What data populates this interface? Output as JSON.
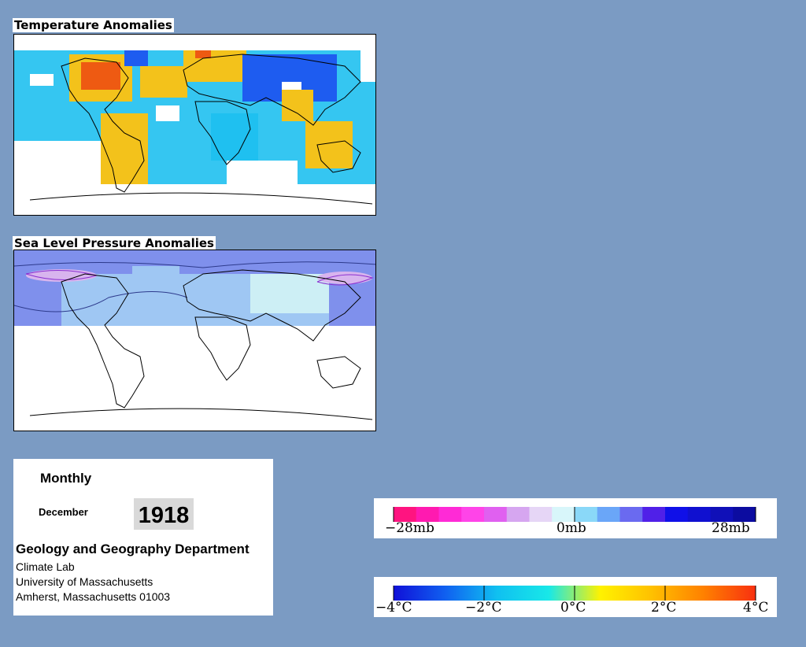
{
  "temperature_map": {
    "title": "Temperature Anomalies",
    "colors": {
      "cold": "#1e5cf0",
      "cool": "#1fc0f0",
      "neutral": "#ffffff",
      "warm": "#f3c21b",
      "hot": "#ee5a12"
    }
  },
  "pressure_map": {
    "title": "Sea Level Pressure Anomalies",
    "colors": {
      "low": "#7f90ec",
      "mid": "#9fc7f3",
      "zero": "#cdeff5",
      "high": "#d8b4ee",
      "contour": "#8b2fd0"
    }
  },
  "info": {
    "period": "Monthly",
    "month": "December",
    "year": "1918",
    "department": "Geology and Geography Department",
    "lab": "Climate Lab",
    "university": "University of Massachusetts",
    "address": "Amherst, Massachusetts 01003"
  },
  "pressure_legend": {
    "labels": [
      "−28mb",
      "0mb",
      "28mb"
    ],
    "colors": [
      "#ff1480",
      "#ff1ab0",
      "#ff2ad6",
      "#ff44e8",
      "#e060f0",
      "#d6a6f0",
      "#e6d6f6",
      "#d8f6fa",
      "#8ad8f8",
      "#6aa6f8",
      "#6a6af0",
      "#5020e8",
      "#1010e8",
      "#1010d0",
      "#1010b8",
      "#0c0ca0"
    ]
  },
  "temperature_legend": {
    "labels": [
      "−4°C",
      "−2°C",
      "0°C",
      "2°C",
      "4°C"
    ],
    "gradient": [
      "#1010d8",
      "#1060f0",
      "#10c0f0",
      "#18e8e8",
      "#fff200",
      "#ffc000",
      "#ff8000",
      "#f83010"
    ]
  }
}
